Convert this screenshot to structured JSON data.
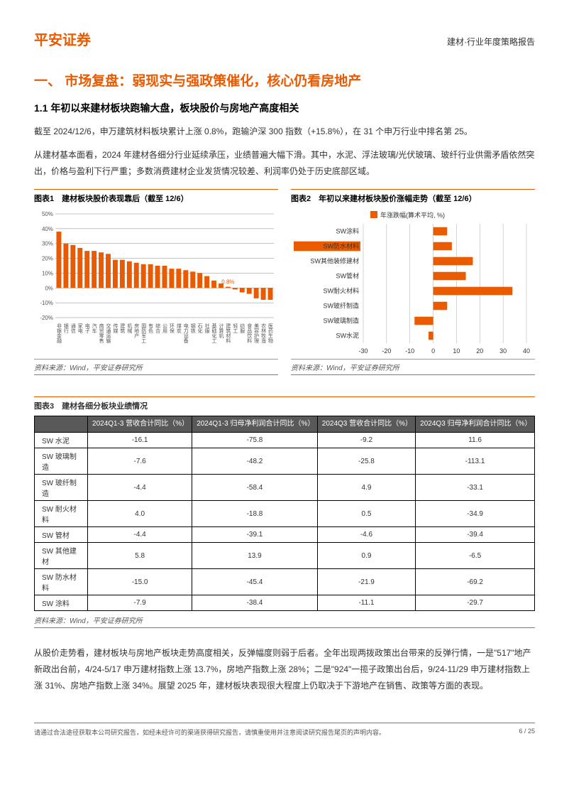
{
  "header": {
    "logo": "平安证券",
    "subtitle": "建材·行业年度策略报告"
  },
  "section": {
    "title": "一、 市场复盘：弱现实与强政策催化，核心仍看房地产",
    "sub_title": "1.1 年初以来建材板块跑输大盘，板块股价与房地产高度相关",
    "para1": "截至 2024/12/6，申万建筑材料板块累计上涨 0.8%，跑输沪深 300 指数（+15.8%），在 31 个申万行业中排名第 25。",
    "para2": "从建材基本面看，2024 年建材各细分行业延续承压，业绩普遍大幅下滑。其中，水泥、浮法玻璃/光伏玻璃、玻纤行业供需矛盾依然突出，价格与盈利下行严重；多数消费建材企业发货情况较差、利润率仍处于历史底部区域。",
    "para3": "从股价走势看，建材板块与房地产板块走势高度相关，反弹幅度则弱于后者。全年出现两拨政策出台带来的反弹行情，一是\"517\"地产新政出台前，4/24-5/17 申万建材指数上涨 13.7%，房地产指数上涨 28%；二是\"924\"一揽子政策出台后，9/24-11/29 申万建材指数上涨 31%、房地产指数上涨 34%。展望 2025 年，建材板块表现很大程度上仍取决于下游地产在销售、政策等方面的表现。"
  },
  "chart1": {
    "title": "图表1　建材板块股价表现靠后（截至 12/6）",
    "type": "bar",
    "ylim": [
      -20,
      50
    ],
    "ytick_step": 10,
    "callout_label": "0.8%",
    "callout_index": 24,
    "bar_color": "#ea5a00",
    "background": "#ffffff",
    "axis_color": "#888888",
    "values": [
      38,
      30,
      29,
      27,
      25,
      25,
      24,
      23,
      19,
      19,
      18,
      17,
      16,
      16,
      15,
      15,
      13,
      13,
      12,
      11,
      10,
      8,
      5,
      3,
      0.8,
      -1,
      -3,
      -4,
      -7,
      -8,
      -8
    ],
    "x_labels": [
      "非银金融",
      "银行",
      "通信",
      "家电",
      "电子",
      "汽车",
      "商贸零售",
      "交通运输",
      "传媒",
      "建筑",
      "机械",
      "房地产",
      "国防军工",
      "有色",
      "综合",
      "公用",
      "环保",
      "煤炭",
      "电力设备",
      "钢铁",
      "石化",
      "社服",
      "基础化工",
      "计算机",
      "建筑材料",
      "轻工",
      "纺服",
      "食品饮料",
      "美容护理",
      "农林牧渔",
      "医药生物"
    ],
    "source": "资料来源：Wind，平安证券研究所"
  },
  "chart2": {
    "title": "图表2　年初以来建材板块股价涨幅走势（截至 12/6）",
    "type": "bar-horizontal",
    "xlim": [
      -30,
      40
    ],
    "xtick_step": 10,
    "legend": "年涨跌幅(算术平均, %)",
    "bar_color": "#ea5a00",
    "background": "#ffffff",
    "axis_color": "#aaaaaa",
    "highlight_index": 1,
    "categories": [
      "SW涂料",
      "SW防水材料",
      "SW其他装修建材",
      "SW管材",
      "SW耐火材料",
      "SW玻纤制造",
      "SW玻璃制造",
      "SW水泥"
    ],
    "values": [
      6,
      8,
      17,
      14,
      34,
      6,
      -8,
      -2
    ],
    "source": "资料来源：Wind，平安证券研究所"
  },
  "table3": {
    "title": "图表3　建材各细分板块业绩情况",
    "header_bg": "#595959",
    "header_color": "#ffffff",
    "columns": [
      "",
      "2024Q1-3 营收合计同比（%）",
      "2024Q1-3 归母净利润合计同比（%）",
      "2024Q3 营收合计同比（%）",
      "2024Q3 归母净利润合计同比（%）"
    ],
    "rows": [
      [
        "SW 水泥",
        "-16.1",
        "-75.8",
        "-9.2",
        "11.6"
      ],
      [
        "SW 玻璃制造",
        "-7.6",
        "-48.2",
        "-25.8",
        "-113.1"
      ],
      [
        "SW 玻纤制造",
        "-4.4",
        "-58.4",
        "4.9",
        "-33.1"
      ],
      [
        "SW 耐火材料",
        "4.0",
        "-18.8",
        "0.5",
        "-34.9"
      ],
      [
        "SW 管材",
        "-4.4",
        "-39.1",
        "-4.6",
        "-39.4"
      ],
      [
        "SW 其他建材",
        "5.8",
        "13.9",
        "0.9",
        "-6.5"
      ],
      [
        "SW 防水材料",
        "-15.0",
        "-45.4",
        "-21.9",
        "-69.2"
      ],
      [
        "SW 涂料",
        "-7.9",
        "-38.4",
        "-11.1",
        "-29.7"
      ]
    ],
    "source": "资料来源：Wind，平安证券研究所"
  },
  "footer": {
    "disclaimer": "请通过合法途径获取本公司研究报告，如经未经许可的渠道获得研究报告，请慎重使用并注意阅读研究报告尾页的声明内容。",
    "page": "6 / 25"
  }
}
